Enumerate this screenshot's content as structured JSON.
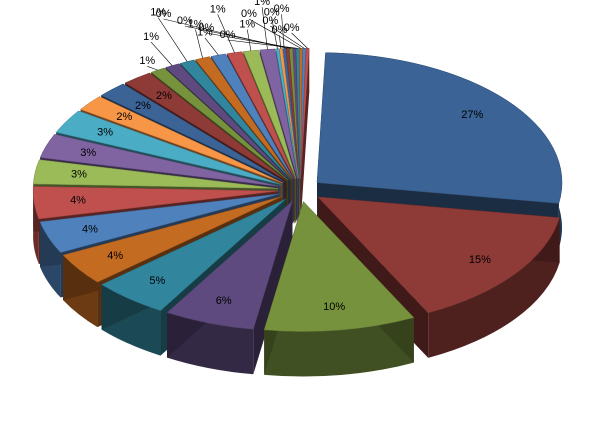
{
  "chart_data": {
    "type": "pie3d",
    "values": [
      27,
      15,
      10,
      6,
      5,
      4,
      4,
      4,
      3,
      3,
      3,
      2,
      2,
      2,
      1,
      1,
      1,
      1,
      1,
      1,
      1,
      1,
      0.2,
      0.2,
      0.2,
      0.2,
      0.2,
      0.2,
      0.2,
      0.2,
      0.2,
      0.2
    ],
    "value_labels": [
      "27%",
      "15%",
      "10%",
      "6%",
      "5%",
      "4%",
      "4%",
      "4%",
      "3%",
      "3%",
      "3%",
      "2%",
      "2%",
      "2%",
      "1%",
      "1%",
      "1%",
      "1%",
      "1%",
      "1%",
      "1%",
      "1%",
      "0%",
      "0%",
      "0%",
      "0%",
      "0%",
      "0%",
      "0%",
      "0%",
      "0%",
      "0%"
    ],
    "colors": [
      "#3b6395",
      "#8e3a37",
      "#77923d",
      "#5e4a7e",
      "#31859c",
      "#c46b22",
      "#4f81bd",
      "#c0504d",
      "#9bbb59",
      "#8064a2",
      "#4bacc6",
      "#f79646"
    ]
  }
}
